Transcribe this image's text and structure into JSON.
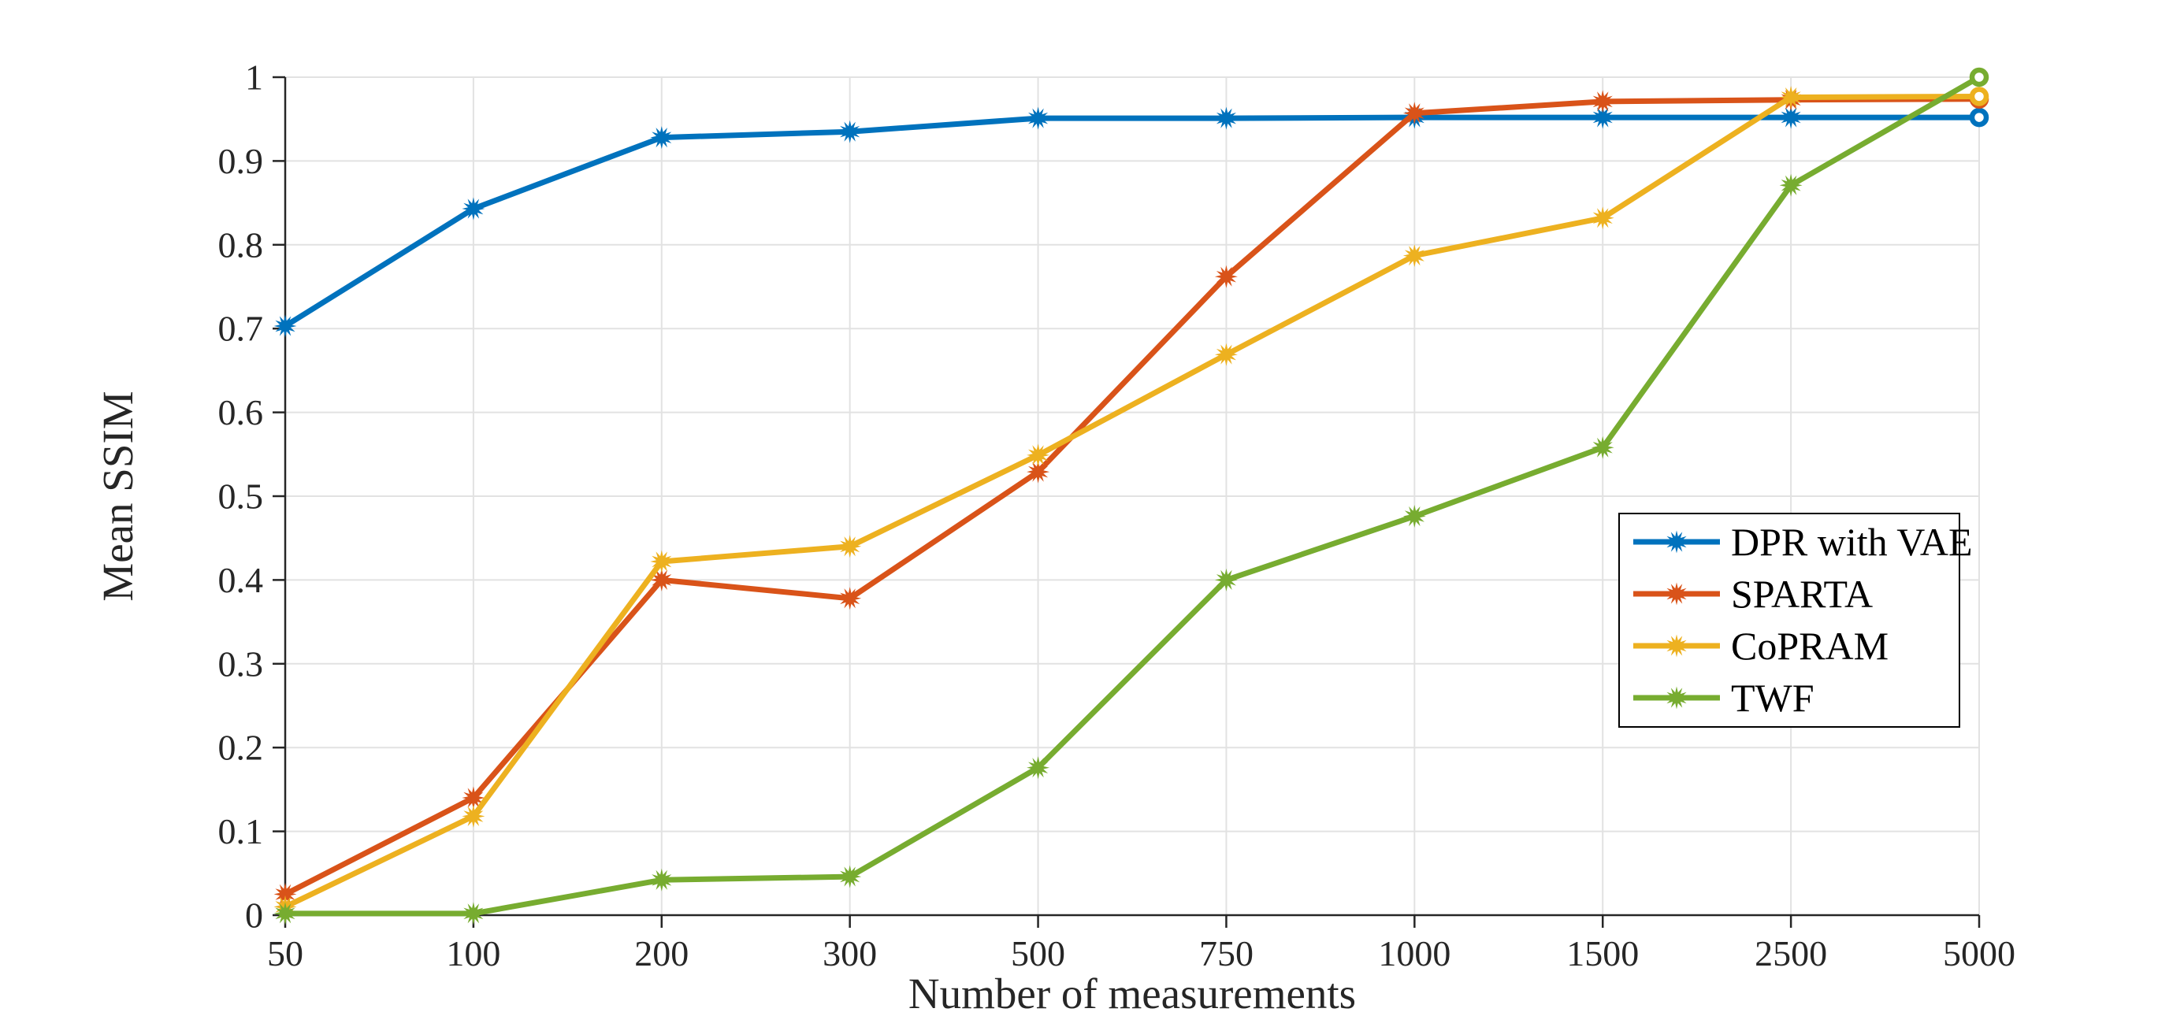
{
  "figure": {
    "background": "#ffffff"
  },
  "chart_data": {
    "type": "line",
    "title": "",
    "xlabel": "Number of measurements",
    "ylabel": "Mean SSIM",
    "categories": [
      50,
      100,
      200,
      300,
      500,
      750,
      1000,
      1500,
      2500,
      5000
    ],
    "x_tick_labels": [
      "50",
      "100",
      "200",
      "300",
      "500",
      "750",
      "1000",
      "1500",
      "2500",
      "5000"
    ],
    "x_axis_note": "categories evenly spaced (non-linear value scale)",
    "y_ticks": [
      0,
      0.1,
      0.2,
      0.3,
      0.4,
      0.5,
      0.6,
      0.7,
      0.8,
      0.9,
      1
    ],
    "y_tick_labels": [
      "0",
      "0.1",
      "0.2",
      "0.3",
      "0.4",
      "0.5",
      "0.6",
      "0.7",
      "0.8",
      "0.9",
      "1"
    ],
    "ylim": [
      0,
      1
    ],
    "grid": true,
    "legend_position": "inside-right-middle",
    "series": [
      {
        "name": "DPR with VAE",
        "color": "#0072BD",
        "marker": "asterisk",
        "end_marker": "ring",
        "values": [
          0.703,
          0.843,
          0.928,
          0.935,
          0.951,
          0.951,
          0.952,
          0.952,
          0.952,
          0.952
        ]
      },
      {
        "name": "SPARTA",
        "color": "#D95319",
        "marker": "asterisk",
        "end_marker": "ring",
        "values": [
          0.025,
          0.14,
          0.4,
          0.378,
          0.529,
          0.762,
          0.957,
          0.971,
          0.973,
          0.974
        ]
      },
      {
        "name": "CoPRAM",
        "color": "#EDB120",
        "marker": "asterisk",
        "end_marker": "ring",
        "values": [
          0.01,
          0.118,
          0.422,
          0.44,
          0.549,
          0.669,
          0.787,
          0.832,
          0.976,
          0.977
        ]
      },
      {
        "name": "TWF",
        "color": "#77AC30",
        "marker": "asterisk",
        "end_marker": "ring",
        "values": [
          0.002,
          0.002,
          0.042,
          0.046,
          0.176,
          0.4,
          0.476,
          0.558,
          0.871,
          1.0
        ]
      }
    ]
  },
  "style": {
    "grid_color": "#e2e2e2",
    "axis_color": "#262626",
    "tick_label_color": "#262626",
    "legend_border_color": "#000000",
    "legend_background": "#ffffff",
    "legend_text_color": "#000000"
  }
}
